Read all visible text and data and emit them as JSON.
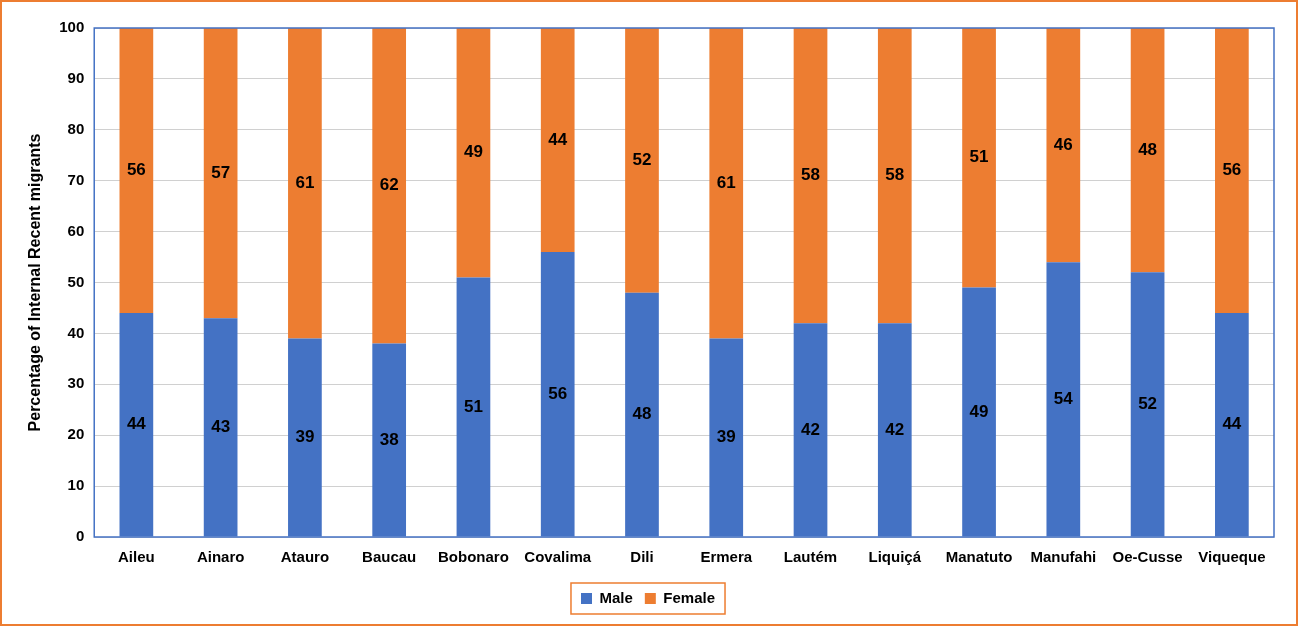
{
  "chart_data": {
    "type": "bar",
    "ylabel": "Percentage of Internal Recent migrants",
    "categories": [
      "Aileu",
      "Ainaro",
      "Atauro",
      "Baucau",
      "Bobonaro",
      "Covalima",
      "Dili",
      "Ermera",
      "Lautém",
      "Liquiçá",
      "Manatuto",
      "Manufahi",
      "Oe-Cusse",
      "Viqueque"
    ],
    "series": [
      {
        "name": "Male",
        "color": "#4472c4",
        "values": [
          44,
          43,
          39,
          38,
          51,
          56,
          48,
          39,
          42,
          42,
          49,
          54,
          52,
          44
        ]
      },
      {
        "name": "Female",
        "color": "#ed7d31",
        "values": [
          56,
          57,
          61,
          62,
          49,
          44,
          52,
          61,
          58,
          58,
          51,
          46,
          48,
          56
        ]
      }
    ],
    "stacked": true,
    "ylim": [
      0,
      100
    ],
    "yticks": [
      0,
      10,
      20,
      30,
      40,
      50,
      60,
      70,
      80,
      90,
      100
    ],
    "grid": "y",
    "legend": "bottom",
    "data_labels": true
  }
}
